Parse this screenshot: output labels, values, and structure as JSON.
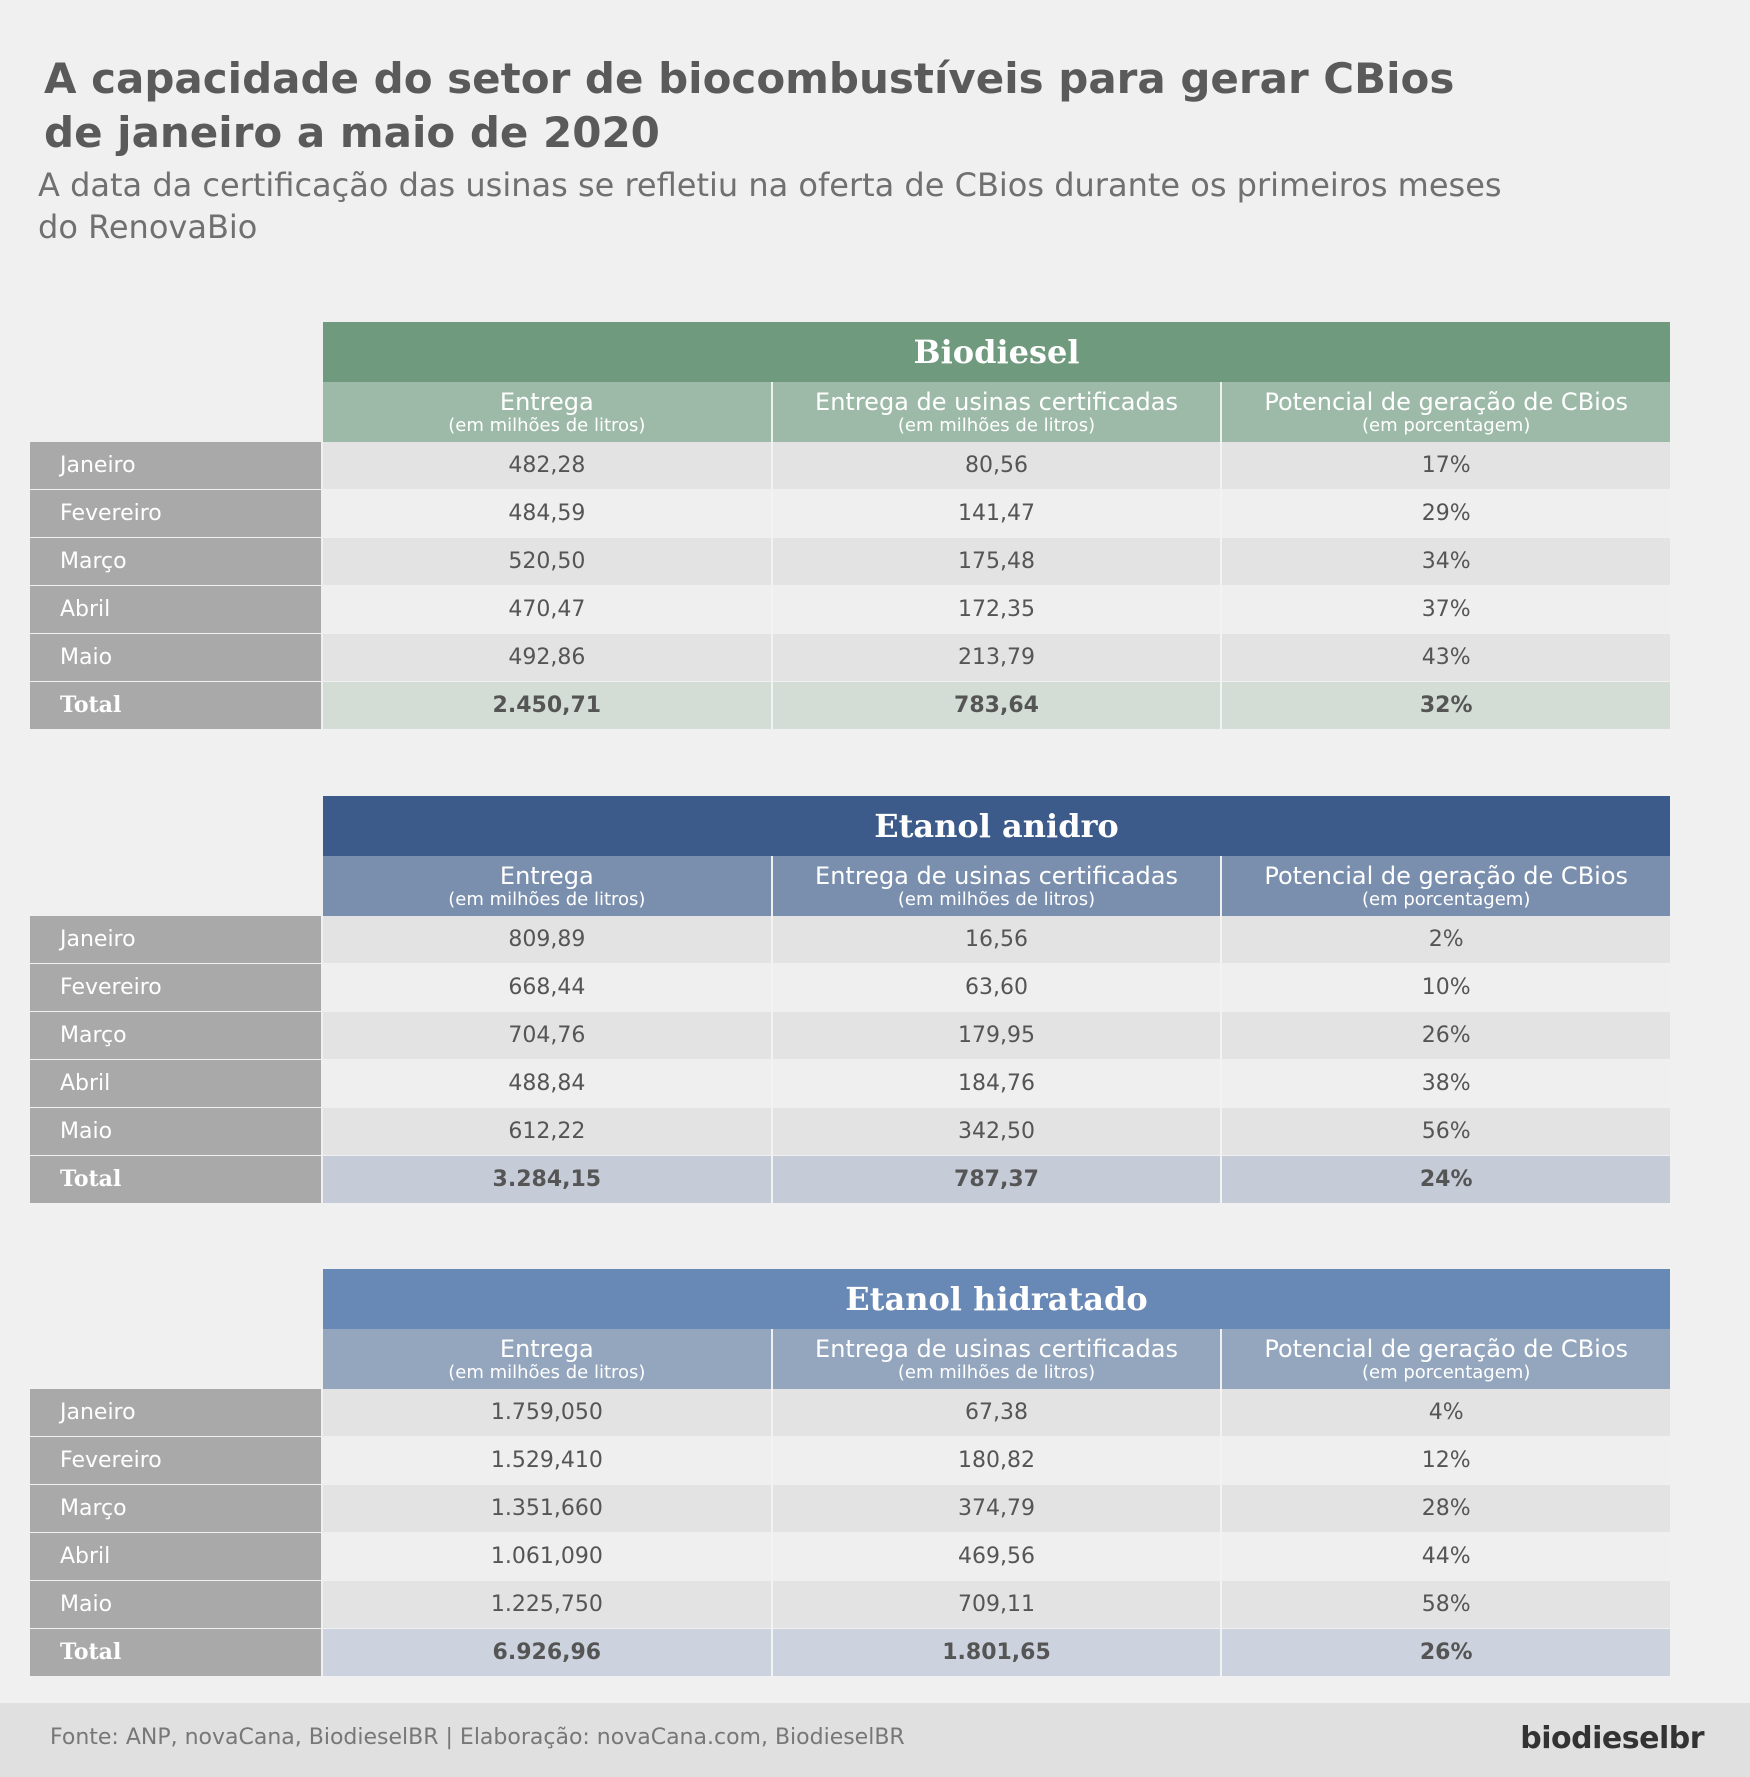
{
  "title": "A capacidade do setor de biocombustíveis para gerar CBios de janeiro a maio de 2020",
  "subtitle": "A data da certificação das usinas se refletiu na oferta de CBios durante os primeiros meses do RenovaBio",
  "footer": {
    "source": "Fonte: ANP, novaCana, BiodieselBR | Elaboração: novaCana.com, BiodieselBR",
    "logo": "biodieselbr"
  },
  "chart_data": [
    {
      "type": "table",
      "title": "Biodiesel",
      "colors": {
        "band": "#6f9a7e",
        "header": "#9dbaa8",
        "total": "#d3ddd6"
      },
      "columns": [
        {
          "name": "Entrega",
          "unit": "(em milhões de litros)"
        },
        {
          "name": "Entrega de usinas certificadas",
          "unit": "(em milhões de litros)"
        },
        {
          "name": "Potencial de geração de CBios",
          "unit": "(em porcentagem)"
        }
      ],
      "rows": [
        {
          "label": "Janeiro",
          "values": [
            "482,28",
            "80,56",
            "17%"
          ]
        },
        {
          "label": "Fevereiro",
          "values": [
            "484,59",
            "141,47",
            "29%"
          ]
        },
        {
          "label": "Março",
          "values": [
            "520,50",
            "175,48",
            "34%"
          ]
        },
        {
          "label": "Abril",
          "values": [
            "470,47",
            "172,35",
            "37%"
          ]
        },
        {
          "label": "Maio",
          "values": [
            "492,86",
            "213,79",
            "43%"
          ]
        },
        {
          "label": "Total",
          "values": [
            "2.450,71",
            "783,64",
            "32%"
          ]
        }
      ]
    },
    {
      "type": "table",
      "title": "Etanol anidro",
      "colors": {
        "band": "#3d5b8a",
        "header": "#7a8fad",
        "total": "#c5cbd7"
      },
      "columns": [
        {
          "name": "Entrega",
          "unit": "(em milhões de litros)"
        },
        {
          "name": "Entrega de usinas certificadas",
          "unit": "(em milhões de litros)"
        },
        {
          "name": "Potencial de geração de CBios",
          "unit": "(em porcentagem)"
        }
      ],
      "rows": [
        {
          "label": "Janeiro",
          "values": [
            "809,89",
            "16,56",
            "2%"
          ]
        },
        {
          "label": "Fevereiro",
          "values": [
            "668,44",
            "63,60",
            "10%"
          ]
        },
        {
          "label": "Março",
          "values": [
            "704,76",
            "179,95",
            "26%"
          ]
        },
        {
          "label": "Abril",
          "values": [
            "488,84",
            "184,76",
            "38%"
          ]
        },
        {
          "label": "Maio",
          "values": [
            "612,22",
            "342,50",
            "56%"
          ]
        },
        {
          "label": "Total",
          "values": [
            "3.284,15",
            "787,37",
            "24%"
          ]
        }
      ]
    },
    {
      "type": "table",
      "title": "Etanol hidratado",
      "colors": {
        "band": "#6888b5",
        "header": "#93a6be",
        "total": "#cdd3de"
      },
      "columns": [
        {
          "name": "Entrega",
          "unit": "(em milhões de litros)"
        },
        {
          "name": "Entrega de usinas certificadas",
          "unit": "(em milhões de litros)"
        },
        {
          "name": "Potencial de geração de CBios",
          "unit": "(em porcentagem)"
        }
      ],
      "rows": [
        {
          "label": "Janeiro",
          "values": [
            "1.759,050",
            "67,38",
            "4%"
          ]
        },
        {
          "label": "Fevereiro",
          "values": [
            "1.529,410",
            "180,82",
            "12%"
          ]
        },
        {
          "label": "Março",
          "values": [
            "1.351,660",
            "374,79",
            "28%"
          ]
        },
        {
          "label": "Abril",
          "values": [
            "1.061,090",
            "469,56",
            "44%"
          ]
        },
        {
          "label": "Maio",
          "values": [
            "1.225,750",
            "709,11",
            "58%"
          ]
        },
        {
          "label": "Total",
          "values": [
            "6.926,96",
            "1.801,65",
            "26%"
          ]
        }
      ]
    }
  ]
}
